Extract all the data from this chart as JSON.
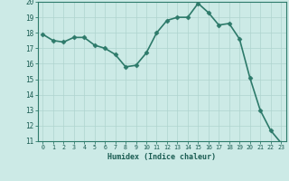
{
  "x": [
    0,
    1,
    2,
    3,
    4,
    5,
    6,
    7,
    8,
    9,
    10,
    11,
    12,
    13,
    14,
    15,
    16,
    17,
    18,
    19,
    20,
    21,
    22,
    23
  ],
  "y": [
    17.9,
    17.5,
    17.4,
    17.7,
    17.7,
    17.2,
    17.0,
    16.6,
    15.8,
    15.9,
    16.7,
    18.0,
    18.8,
    19.0,
    19.0,
    19.9,
    19.3,
    18.5,
    18.6,
    17.6,
    15.1,
    13.0,
    11.7,
    10.9
  ],
  "xlabel": "Humidex (Indice chaleur)",
  "ylim": [
    11,
    20
  ],
  "xlim": [
    -0.5,
    23.5
  ],
  "yticks": [
    11,
    12,
    13,
    14,
    15,
    16,
    17,
    18,
    19,
    20
  ],
  "xticks": [
    0,
    1,
    2,
    3,
    4,
    5,
    6,
    7,
    8,
    9,
    10,
    11,
    12,
    13,
    14,
    15,
    16,
    17,
    18,
    19,
    20,
    21,
    22,
    23
  ],
  "line_color": "#2d7a6a",
  "bg_color": "#cceae6",
  "grid_color": "#aed4ce",
  "tick_label_color": "#1a5c52",
  "axis_label_color": "#1a5c52",
  "marker_size": 2.5,
  "line_width": 1.2
}
